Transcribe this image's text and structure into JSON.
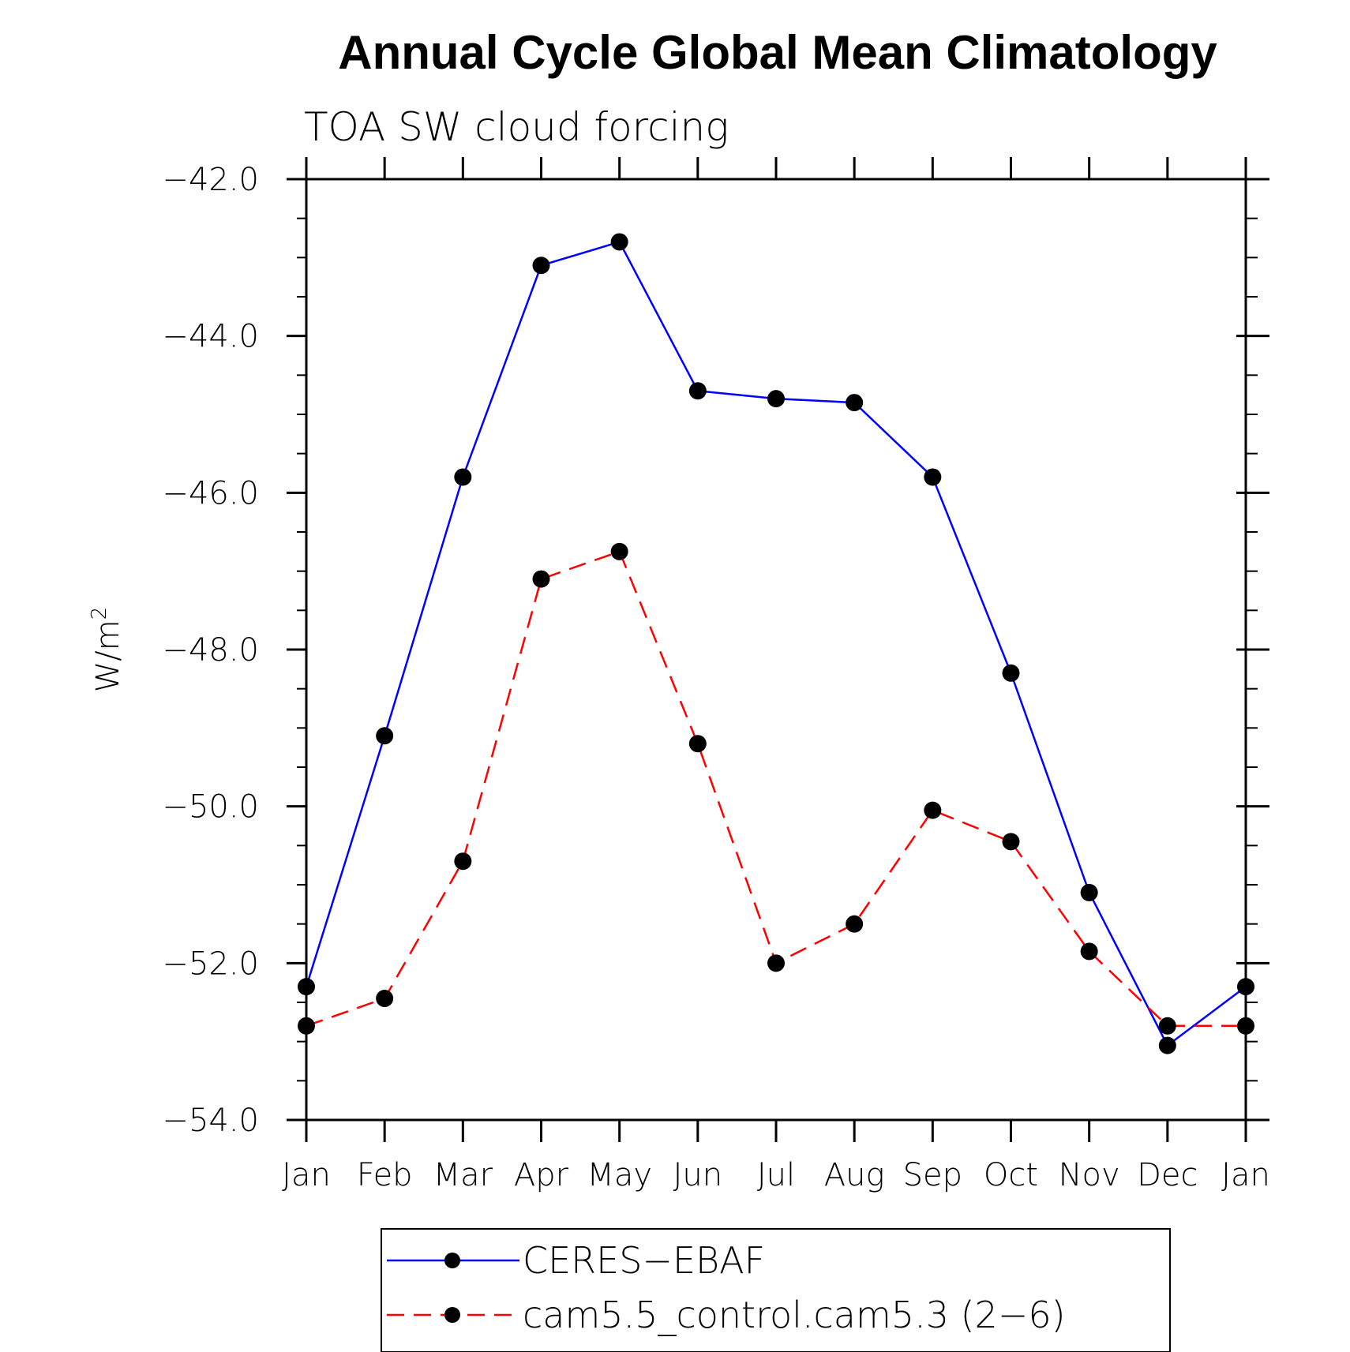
{
  "chart_data": {
    "type": "line",
    "title": "Annual Cycle Global Mean Climatology",
    "subtitle": "TOA SW cloud forcing",
    "ylabel": "W/m",
    "ylabel_superscript": "2",
    "xlabel": "",
    "categories": [
      "Jan",
      "Feb",
      "Mar",
      "Apr",
      "May",
      "Jun",
      "Jul",
      "Aug",
      "Sep",
      "Oct",
      "Nov",
      "Dec",
      "Jan"
    ],
    "ylim": [
      -54.0,
      -42.0
    ],
    "y_ticks": [
      -54.0,
      -52.0,
      -50.0,
      -48.0,
      -46.0,
      -44.0,
      -42.0
    ],
    "y_tick_labels": [
      "−54.0",
      "−52.0",
      "−50.0",
      "−48.0",
      "−46.0",
      "−44.0",
      "−42.0"
    ],
    "y_minor_step": 0.5,
    "grid": false,
    "legend_position": "bottom",
    "series": [
      {
        "name": "CERES−EBAF",
        "color": "#0000ff",
        "line_style": "solid",
        "marker": "circle",
        "values": [
          -52.3,
          -49.1,
          -45.8,
          -43.1,
          -42.8,
          -44.7,
          -44.8,
          -44.85,
          -45.8,
          -48.3,
          -51.1,
          -53.05,
          -52.3
        ]
      },
      {
        "name": "cam5.5_control.cam5.3 (2−6)",
        "color": "#ff0000",
        "line_style": "dashed",
        "marker": "circle",
        "values": [
          -52.8,
          -52.45,
          -50.7,
          -47.1,
          -46.75,
          -49.2,
          -52.0,
          -51.5,
          -50.05,
          -50.45,
          -51.85,
          -52.8,
          -52.8
        ]
      }
    ]
  }
}
